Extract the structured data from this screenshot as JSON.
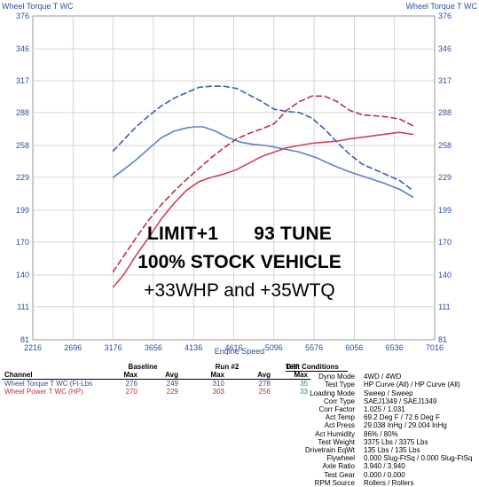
{
  "chart_data": {
    "type": "line",
    "title_left": "Wheel Torque T WC",
    "title_right": "Wheel Torque T WC",
    "xlabel": "Engine Speed",
    "xlim": [
      2216,
      7016
    ],
    "ylim": [
      81,
      376
    ],
    "x_ticks": [
      "2216",
      "2696",
      "3176",
      "3656",
      "4136",
      "4616",
      "5096",
      "5576",
      "6056",
      "6536",
      "7016"
    ],
    "y_ticks": [
      "376",
      "346",
      "317",
      "288",
      "258",
      "229",
      "199",
      "170",
      "140",
      "111",
      "81"
    ],
    "series": [
      {
        "name": "Baseline Wheel Torque",
        "color": "#5b7fd0",
        "style": "solid",
        "x": [
          3176,
          3300,
          3450,
          3600,
          3750,
          3900,
          4050,
          4150,
          4250,
          4400,
          4550,
          4700,
          4850,
          5000,
          5200,
          5400,
          5600,
          5800,
          6000,
          6200,
          6400,
          6600,
          6756
        ],
        "y": [
          229,
          236,
          245,
          255,
          265,
          271,
          274,
          275,
          275,
          271,
          265,
          261,
          259,
          258,
          255,
          252,
          247,
          240,
          234,
          229,
          224,
          218,
          211
        ]
      },
      {
        "name": "Run #2 Wheel Torque",
        "color": "#3a5fb8",
        "style": "dashed",
        "x": [
          3176,
          3300,
          3450,
          3600,
          3750,
          3900,
          4050,
          4200,
          4350,
          4500,
          4650,
          4800,
          4950,
          5100,
          5250,
          5400,
          5550,
          5700,
          5850,
          6000,
          6150,
          6300,
          6450,
          6600,
          6756
        ],
        "y": [
          253,
          263,
          275,
          285,
          294,
          301,
          306,
          311,
          312,
          312,
          310,
          304,
          298,
          291,
          289,
          288,
          283,
          273,
          261,
          250,
          241,
          236,
          231,
          226,
          217
        ]
      },
      {
        "name": "Baseline Wheel Power",
        "color": "#cf4058",
        "style": "solid",
        "x": [
          3176,
          3300,
          3450,
          3600,
          3750,
          3900,
          4050,
          4200,
          4350,
          4500,
          4650,
          4800,
          4950,
          5100,
          5250,
          5400,
          5550,
          5700,
          5850,
          6000,
          6200,
          6400,
          6600,
          6756
        ],
        "y": [
          129,
          140,
          158,
          174,
          191,
          205,
          217,
          225,
          229,
          232,
          236,
          242,
          248,
          252,
          256,
          258,
          260,
          261,
          262,
          264,
          266,
          268,
          270,
          268
        ]
      },
      {
        "name": "Run #2 Wheel Power",
        "color": "#b8324a",
        "style": "dashed",
        "x": [
          3176,
          3300,
          3450,
          3600,
          3750,
          3900,
          4050,
          4200,
          4350,
          4500,
          4650,
          4800,
          4950,
          5100,
          5250,
          5400,
          5550,
          5700,
          5850,
          6000,
          6150,
          6300,
          6450,
          6600,
          6756
        ],
        "y": [
          143,
          157,
          174,
          190,
          204,
          216,
          227,
          237,
          247,
          256,
          264,
          269,
          273,
          278,
          290,
          298,
          303,
          303,
          298,
          290,
          286,
          285,
          284,
          282,
          276
        ]
      }
    ]
  },
  "overlay": {
    "line1a": "LIMIT+1",
    "line1b": "93 TUNE",
    "line2": "100% STOCK VEHICLE",
    "line3": "+33WHP and +35WTQ"
  },
  "results": {
    "headers": {
      "baseline": "Baseline",
      "run": "Run #2",
      "diff": "Diff"
    },
    "subheaders": {
      "channel": "Channel",
      "max": "Max",
      "avg": "Avg",
      "max2": "Max",
      "avg2": "Avg",
      "dmax": "Max"
    },
    "rows": [
      {
        "channel": "Wheel Torque T WC (Ft-Lbs",
        "bmax": "276",
        "bavg": "249",
        "rmax": "310",
        "ravg": "278",
        "dmax": "35",
        "color": "#2b4f9e",
        "dcolor": "#1f9a3b"
      },
      {
        "channel": "Wheel Power T WC (HP)",
        "bmax": "270",
        "bavg": "229",
        "rmax": "303",
        "ravg": "256",
        "dmax": "33",
        "color": "#c8283c",
        "dcolor": "#1f9a3b"
      }
    ]
  },
  "conditions": {
    "header": "Test Conditions",
    "items": [
      {
        "k": "Dyno Mode",
        "v": "4WD / 4WD"
      },
      {
        "k": "Test Type",
        "v": "HP Curve (All) / HP Curve (All)"
      },
      {
        "k": "Loading Mode",
        "v": "Sweep / Sweep"
      },
      {
        "k": "Corr Type",
        "v": "SAEJ1349 / SAEJ1349"
      },
      {
        "k": "Corr Factor",
        "v": "1.025 / 1.031"
      },
      {
        "k": "Act Temp",
        "v": "69.2 Deg F / 72.6 Deg F"
      },
      {
        "k": "Act Press",
        "v": "29.038 InHg / 29.004 InHg"
      },
      {
        "k": "Act Humidity",
        "v": "86% / 80%"
      },
      {
        "k": "Test Weight",
        "v": "3375 Lbs / 3375 Lbs"
      },
      {
        "k": "Drivetrain EqWt",
        "v": "135 Lbs / 135 Lbs"
      },
      {
        "k": "Flywheel",
        "v": "0.000 Slug-FtSq / 0.000 Slug-FtSq"
      },
      {
        "k": "Axle Ratio",
        "v": "3.940 / 3.940"
      },
      {
        "k": "Test Gear",
        "v": "0.000 / 0.000"
      },
      {
        "k": "RPM Source",
        "v": "Rollers / Rollers"
      }
    ]
  }
}
